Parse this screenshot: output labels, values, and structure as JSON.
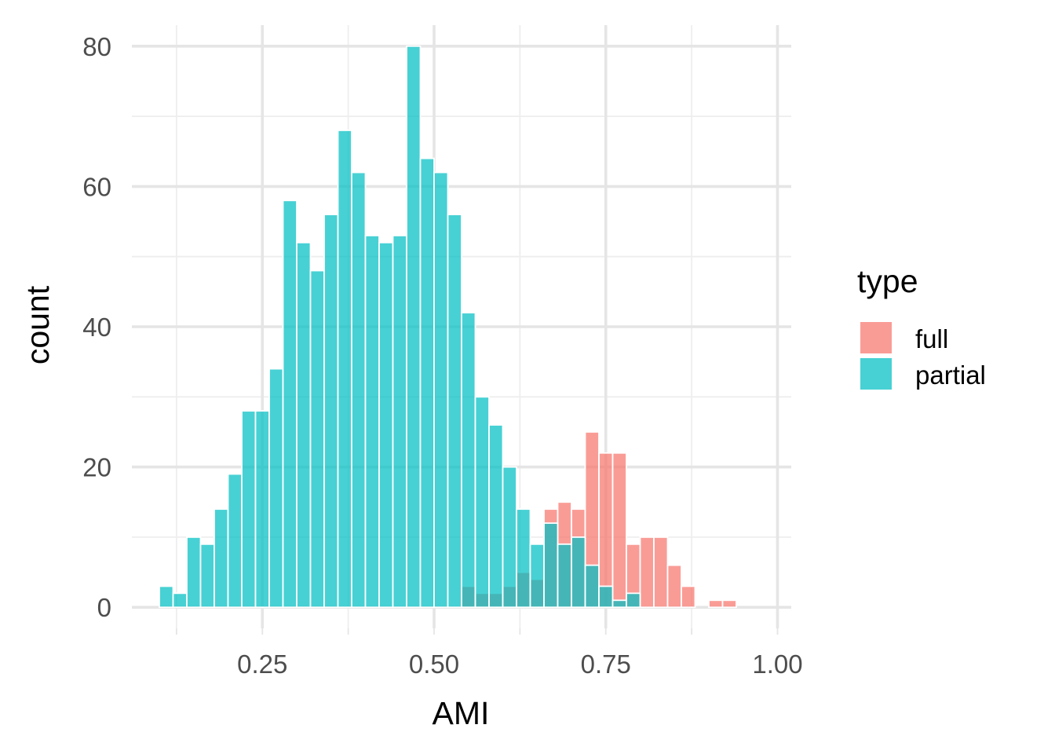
{
  "chart_data": {
    "type": "bar",
    "subtype": "overlaid-histogram",
    "title": "",
    "xlabel": "AMI",
    "ylabel": "count",
    "xlim": [
      0.06,
      1.02
    ],
    "ylim": [
      -3,
      83
    ],
    "x_ticks": [
      0.25,
      0.5,
      0.75,
      1.0
    ],
    "x_tick_labels": [
      "0.25",
      "0.50",
      "0.75",
      "1.00"
    ],
    "y_ticks": [
      0,
      20,
      40,
      60,
      80
    ],
    "y_tick_labels": [
      "0",
      "20",
      "40",
      "60",
      "80"
    ],
    "bin_width": 0.02,
    "grid": true,
    "legend": {
      "title": "type",
      "position": "right"
    },
    "series": [
      {
        "name": "full",
        "color": "#F8766D",
        "bins": [
          {
            "x": 0.55,
            "count": 3
          },
          {
            "x": 0.57,
            "count": 2
          },
          {
            "x": 0.59,
            "count": 2
          },
          {
            "x": 0.61,
            "count": 3
          },
          {
            "x": 0.63,
            "count": 5
          },
          {
            "x": 0.65,
            "count": 4
          },
          {
            "x": 0.67,
            "count": 14
          },
          {
            "x": 0.69,
            "count": 15
          },
          {
            "x": 0.71,
            "count": 14
          },
          {
            "x": 0.73,
            "count": 25
          },
          {
            "x": 0.75,
            "count": 22
          },
          {
            "x": 0.77,
            "count": 22
          },
          {
            "x": 0.79,
            "count": 9
          },
          {
            "x": 0.81,
            "count": 10
          },
          {
            "x": 0.83,
            "count": 10
          },
          {
            "x": 0.85,
            "count": 6
          },
          {
            "x": 0.87,
            "count": 3
          },
          {
            "x": 0.91,
            "count": 1
          },
          {
            "x": 0.93,
            "count": 1
          }
        ]
      },
      {
        "name": "partial",
        "color": "#00BFC4",
        "bins": [
          {
            "x": 0.11,
            "count": 3
          },
          {
            "x": 0.13,
            "count": 2
          },
          {
            "x": 0.15,
            "count": 10
          },
          {
            "x": 0.17,
            "count": 9
          },
          {
            "x": 0.19,
            "count": 14
          },
          {
            "x": 0.21,
            "count": 19
          },
          {
            "x": 0.23,
            "count": 28
          },
          {
            "x": 0.25,
            "count": 28
          },
          {
            "x": 0.27,
            "count": 34
          },
          {
            "x": 0.29,
            "count": 58
          },
          {
            "x": 0.31,
            "count": 52
          },
          {
            "x": 0.33,
            "count": 48
          },
          {
            "x": 0.35,
            "count": 56
          },
          {
            "x": 0.37,
            "count": 68
          },
          {
            "x": 0.39,
            "count": 62
          },
          {
            "x": 0.41,
            "count": 53
          },
          {
            "x": 0.43,
            "count": 52
          },
          {
            "x": 0.45,
            "count": 53
          },
          {
            "x": 0.47,
            "count": 80
          },
          {
            "x": 0.49,
            "count": 64
          },
          {
            "x": 0.51,
            "count": 62
          },
          {
            "x": 0.53,
            "count": 56
          },
          {
            "x": 0.55,
            "count": 42
          },
          {
            "x": 0.57,
            "count": 30
          },
          {
            "x": 0.59,
            "count": 26
          },
          {
            "x": 0.61,
            "count": 20
          },
          {
            "x": 0.63,
            "count": 14
          },
          {
            "x": 0.65,
            "count": 9
          },
          {
            "x": 0.67,
            "count": 12
          },
          {
            "x": 0.69,
            "count": 9
          },
          {
            "x": 0.71,
            "count": 10
          },
          {
            "x": 0.73,
            "count": 6
          },
          {
            "x": 0.75,
            "count": 3
          },
          {
            "x": 0.77,
            "count": 1
          },
          {
            "x": 0.79,
            "count": 2
          }
        ]
      }
    ]
  }
}
